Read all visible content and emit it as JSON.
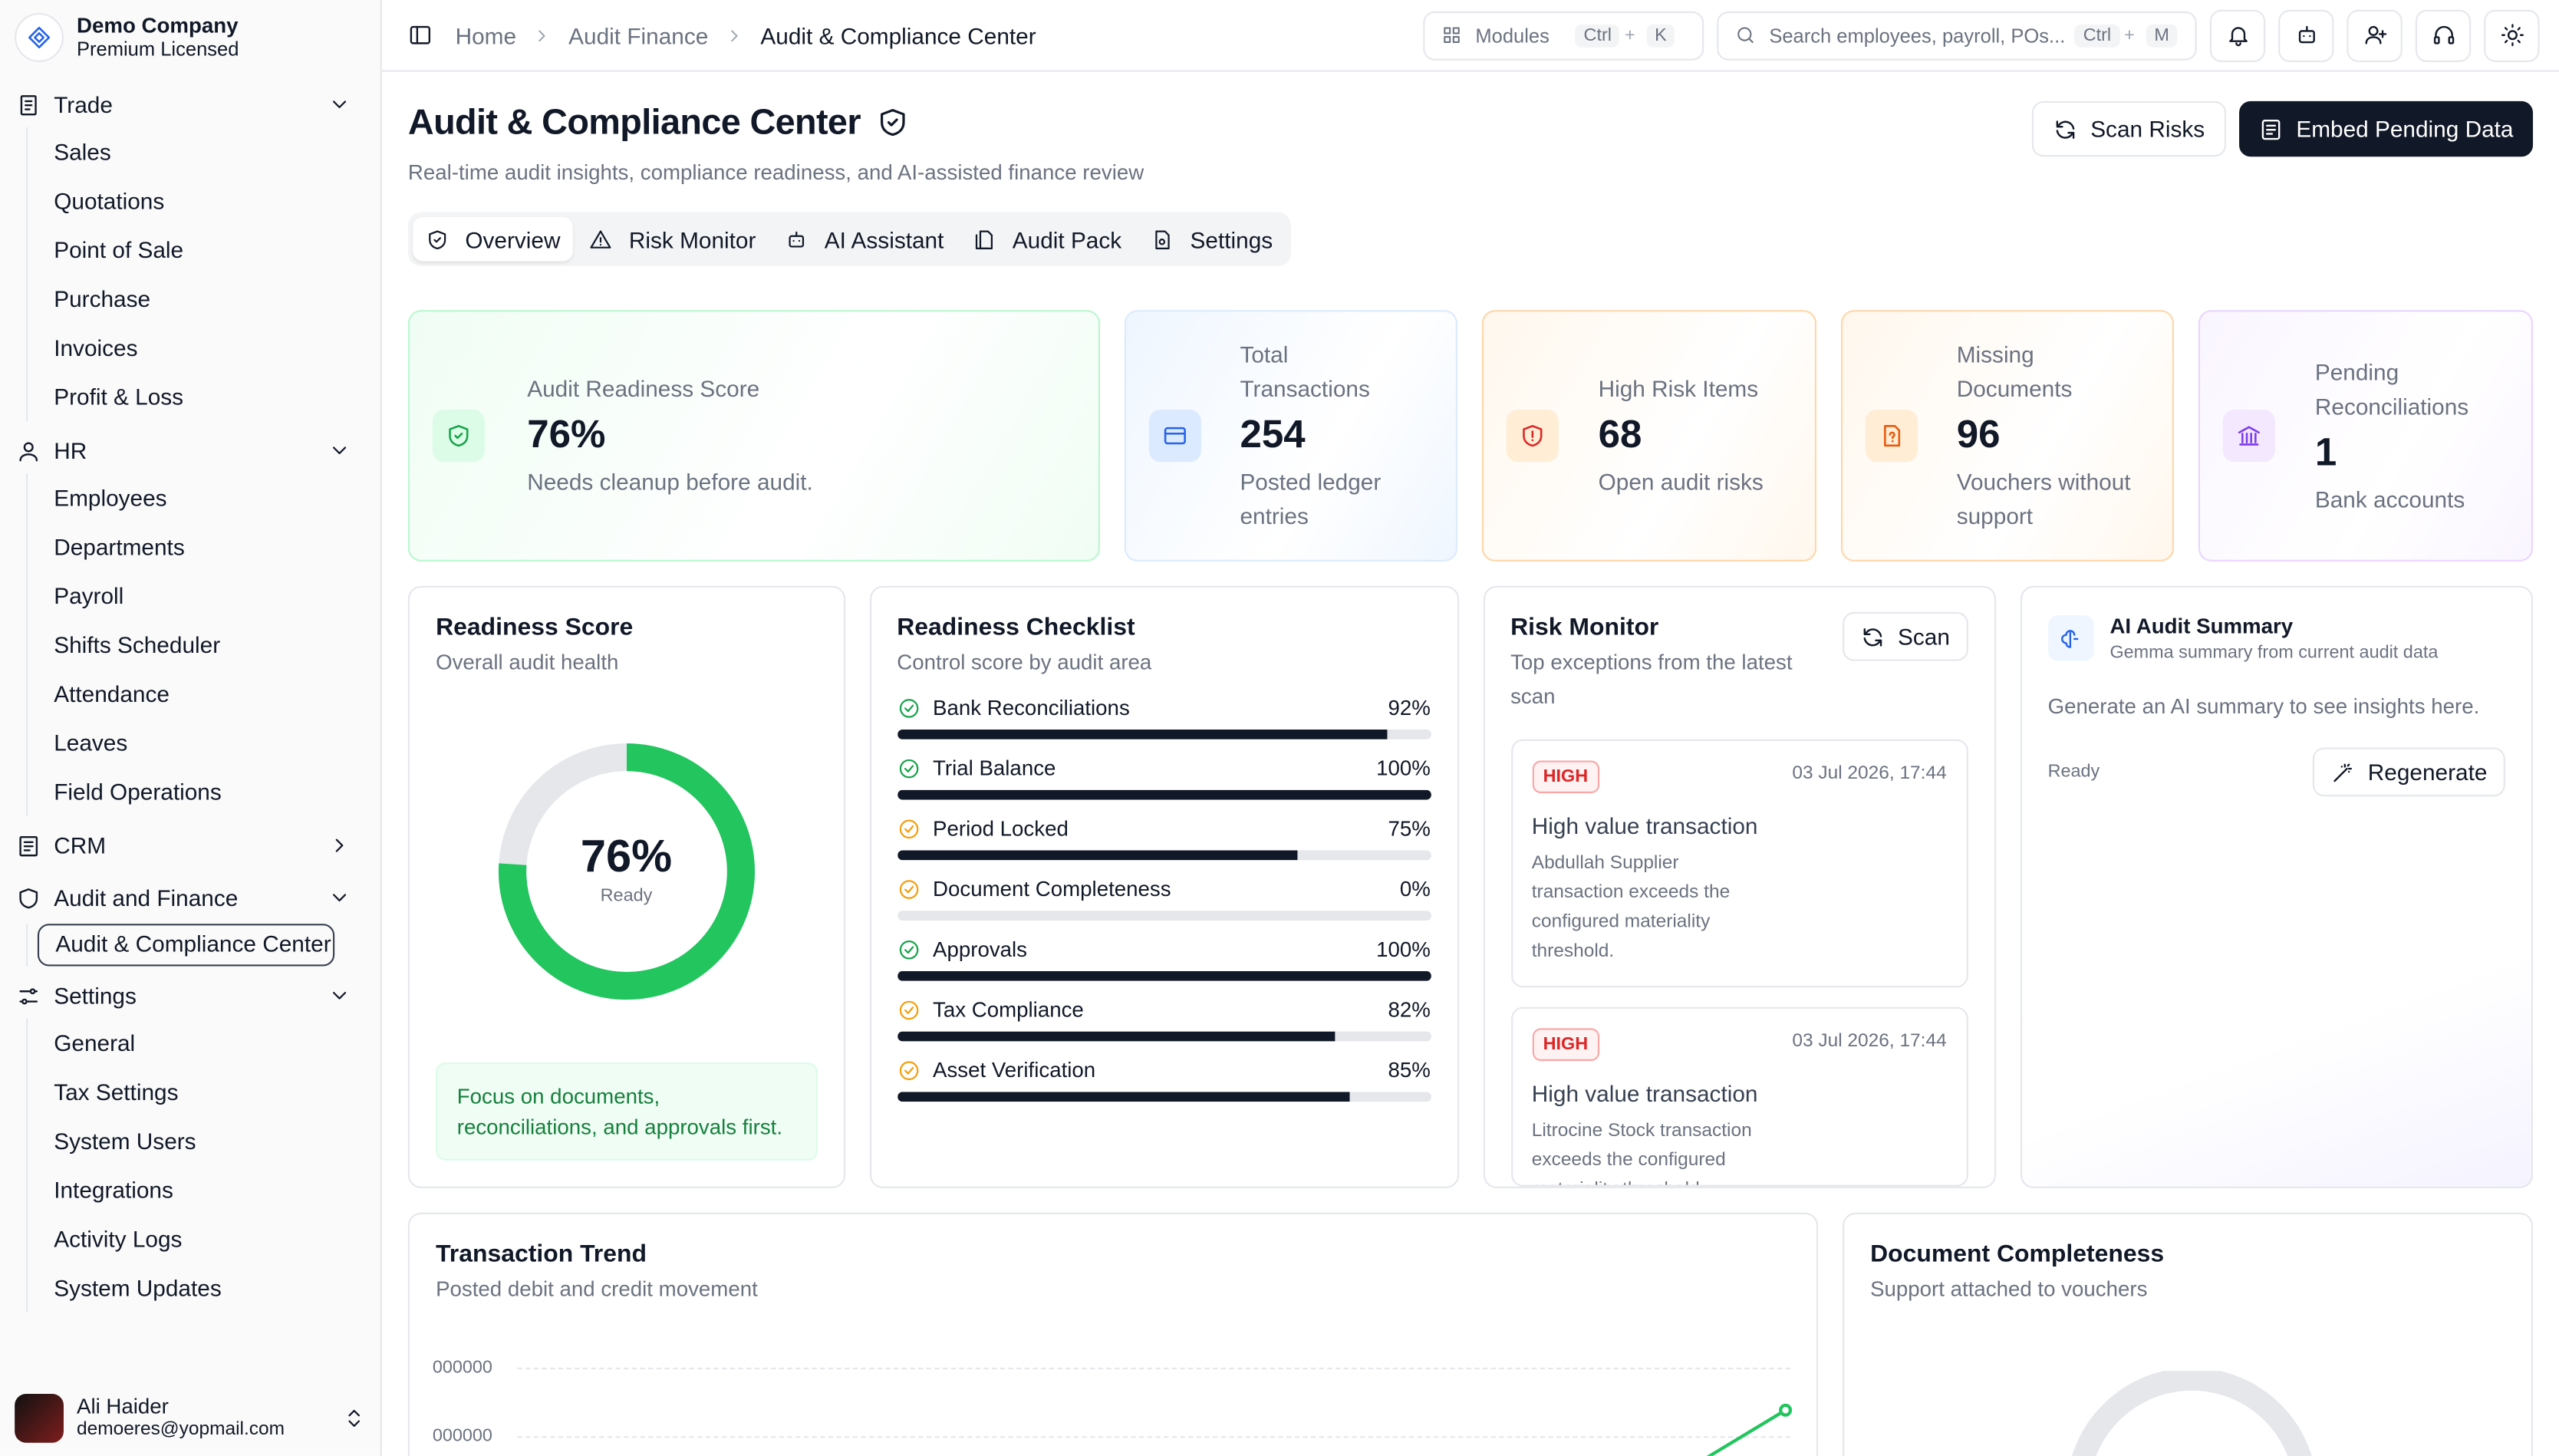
{
  "app": {
    "company": "Demo Company",
    "license": "Premium Licensed"
  },
  "sidebar": {
    "groups": [
      {
        "label": "Trade",
        "items": [
          "Sales",
          "Quotations",
          "Point of Sale",
          "Purchase",
          "Invoices",
          "Profit & Loss"
        ]
      },
      {
        "label": "HR",
        "items": [
          "Employees",
          "Departments",
          "Payroll",
          "Shifts Scheduler",
          "Attendance",
          "Leaves",
          "Field Operations"
        ]
      },
      {
        "label": "CRM",
        "items": []
      },
      {
        "label": "Audit and Finance",
        "items": [
          "Audit & Compliance Center"
        ]
      },
      {
        "label": "Settings",
        "items": [
          "General",
          "Tax Settings",
          "System Users",
          "Integrations",
          "Activity Logs",
          "System Updates"
        ]
      }
    ]
  },
  "user": {
    "name": "Ali Haider",
    "email": "demoeres@yopmail.com"
  },
  "breadcrumb": [
    "Home",
    "Audit Finance",
    "Audit & Compliance Center"
  ],
  "topbar": {
    "modules": "Modules",
    "modules_k1": "Ctrl",
    "modules_k2": "K",
    "search_placeholder": "Search employees, payroll, POs...",
    "search_k1": "Ctrl",
    "search_k2": "M",
    "plus": "+"
  },
  "page": {
    "title": "Audit & Compliance Center",
    "subtitle": "Real-time audit insights, compliance readiness, and AI-assisted finance review",
    "scan_risks": "Scan Risks",
    "embed": "Embed Pending Data"
  },
  "tabs": [
    "Overview",
    "Risk Monitor",
    "AI Assistant",
    "Audit Pack",
    "Settings"
  ],
  "stats": [
    {
      "label": "Audit Readiness Score",
      "value": "76%",
      "note": "Needs cleanup before audit.",
      "color": "#16a34a"
    },
    {
      "label": "Total Transactions",
      "value": "254",
      "note": "Posted ledger entries",
      "color": "#2563eb"
    },
    {
      "label": "High Risk Items",
      "value": "68",
      "note": "Open audit risks",
      "color": "#dc2626"
    },
    {
      "label": "Missing Documents",
      "value": "96",
      "note": "Vouchers without support",
      "color": "#ea580c"
    },
    {
      "label": "Pending Reconciliations",
      "value": "1",
      "note": "Bank accounts",
      "color": "#7c3aed"
    }
  ],
  "readiness": {
    "title": "Readiness Score",
    "subtitle": "Overall audit health",
    "value": "76%",
    "score": 0.76,
    "status": "Ready",
    "tip": "Focus on documents, reconciliations, and approvals first."
  },
  "checklist": {
    "title": "Readiness Checklist",
    "subtitle": "Control score by audit area",
    "items": [
      {
        "label": "Bank Reconciliations",
        "pct": "92%",
        "value": 92,
        "ok": true
      },
      {
        "label": "Trial Balance",
        "pct": "100%",
        "value": 100,
        "ok": true
      },
      {
        "label": "Period Locked",
        "pct": "75%",
        "value": 75,
        "ok": false
      },
      {
        "label": "Document Completeness",
        "pct": "0%",
        "value": 0,
        "ok": false
      },
      {
        "label": "Approvals",
        "pct": "100%",
        "value": 100,
        "ok": true
      },
      {
        "label": "Tax Compliance",
        "pct": "82%",
        "value": 82,
        "ok": false
      },
      {
        "label": "Asset Verification",
        "pct": "85%",
        "value": 85,
        "ok": false
      }
    ]
  },
  "risk": {
    "title": "Risk Monitor",
    "subtitle": "Top exceptions from the latest scan",
    "scan": "Scan",
    "items": [
      {
        "badge": "HIGH",
        "date": "03 Jul 2026, 17:44",
        "title": "High value transaction",
        "desc": "Abdullah Supplier transaction exceeds the configured materiality threshold."
      },
      {
        "badge": "HIGH",
        "date": "03 Jul 2026, 17:44",
        "title": "High value transaction",
        "desc": "Litrocine Stock transaction exceeds the configured materiality threshold."
      }
    ]
  },
  "ai": {
    "title": "AI Audit Summary",
    "subtitle": "Gemma summary from current audit data",
    "body": "Generate an AI summary to see insights here.",
    "status": "Ready",
    "regen": "Regenerate"
  },
  "trend": {
    "title": "Transaction Trend",
    "subtitle": "Posted debit and credit movement",
    "ticks": [
      "000000",
      "000000"
    ]
  },
  "docs": {
    "title": "Document Completeness",
    "subtitle": "Support attached to vouchers"
  }
}
